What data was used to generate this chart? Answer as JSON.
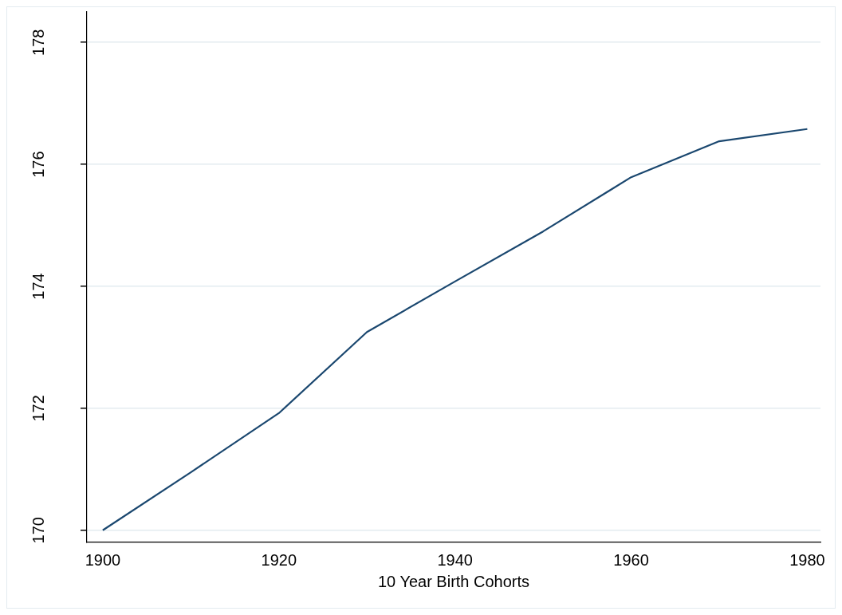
{
  "chart_data": {
    "type": "line",
    "xlabel": "10 Year Birth Cohorts",
    "x": [
      1900,
      1910,
      1920,
      1930,
      1940,
      1950,
      1960,
      1970,
      1980
    ],
    "series": [
      {
        "color": "#1a476f",
        "values": [
          170,
          170.95,
          171.92,
          173.25,
          174.08,
          174.9,
          175.79,
          176.38,
          176.58
        ]
      }
    ],
    "xlim": [
      1898.2,
      1981.5
    ],
    "xticks": [
      1900,
      1920,
      1940,
      1960,
      1980
    ],
    "ylim": [
      169.8,
      178.5
    ],
    "yticks": [
      170,
      172,
      174,
      176,
      178
    ],
    "grid": "y",
    "legend": false,
    "marker": "none",
    "line_style": "solid"
  }
}
